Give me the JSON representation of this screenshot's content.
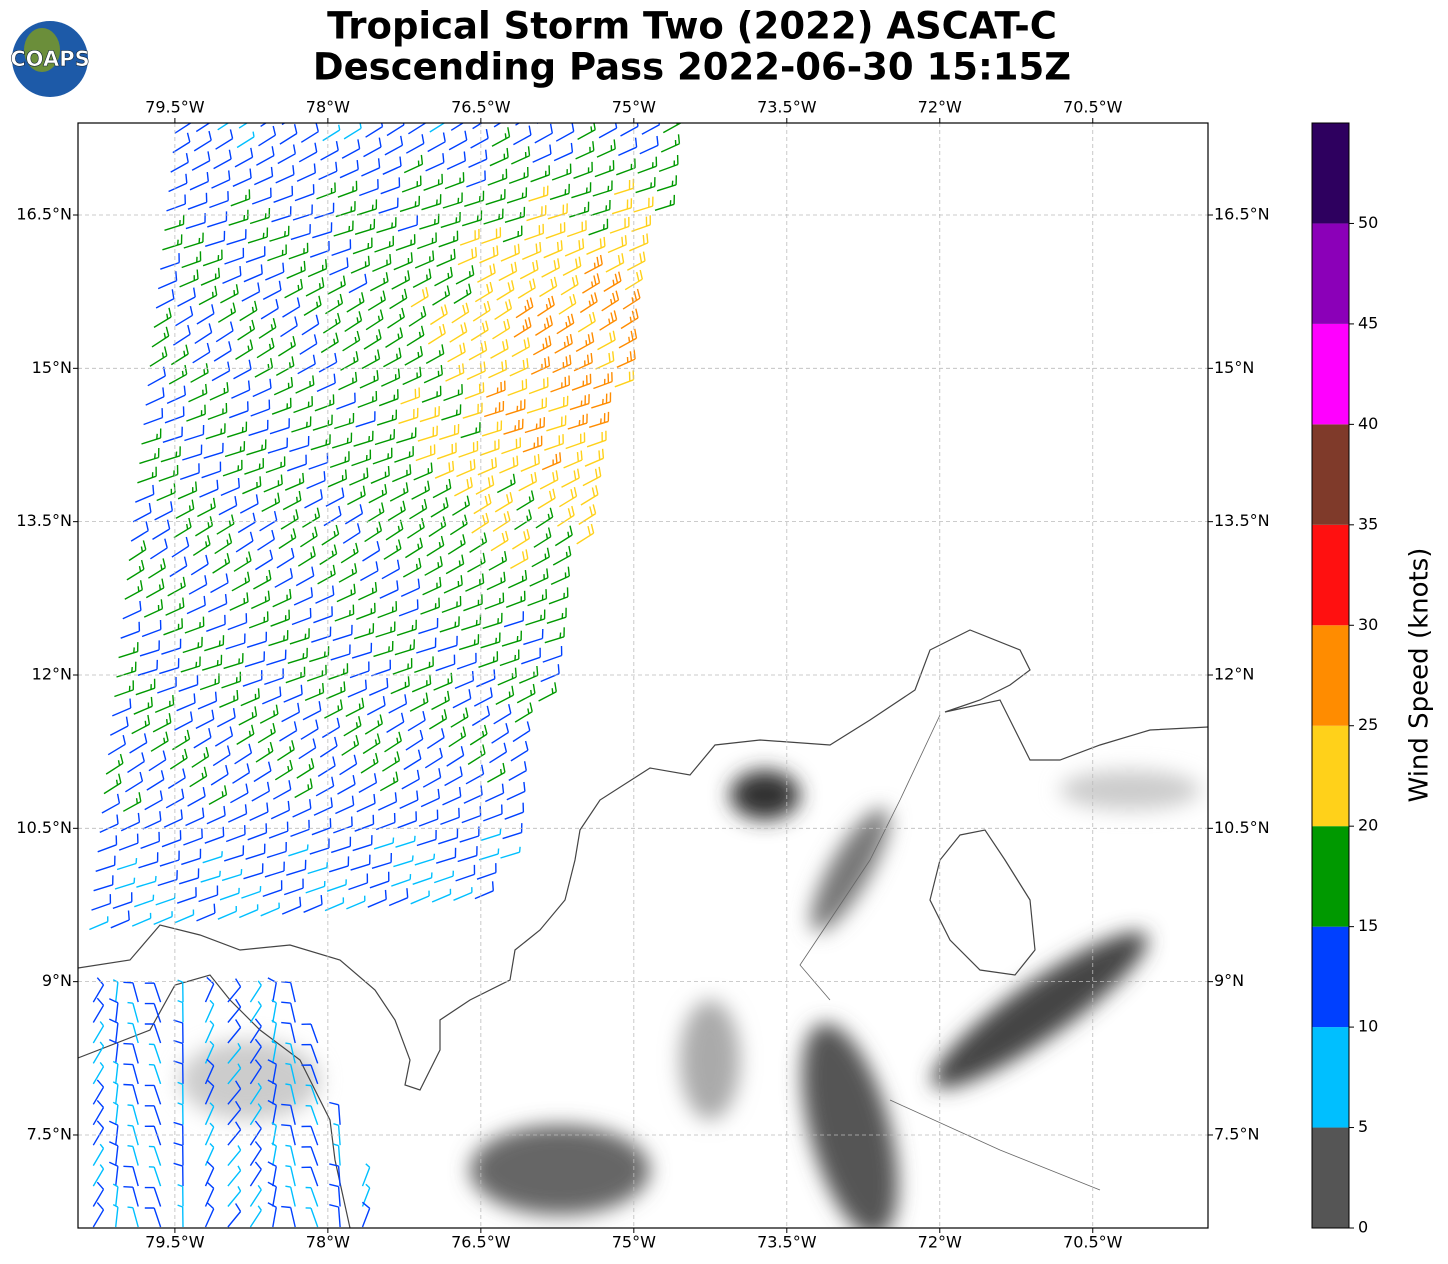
{
  "logo": {
    "text": "COAPS"
  },
  "chart_data": {
    "type": "wind-map",
    "title": [
      "Tropical Storm Two (2022) ASCAT-C",
      "Descending Pass 2022-06-30 15:15Z"
    ],
    "xlim": [
      -80.45,
      -69.37
    ],
    "ylim": [
      6.59,
      17.4
    ],
    "xticks": [
      {
        "value": -79.5,
        "label": "79.5°W"
      },
      {
        "value": -78,
        "label": "78°W"
      },
      {
        "value": -76.5,
        "label": "76.5°W"
      },
      {
        "value": -75,
        "label": "75°W"
      },
      {
        "value": -73.5,
        "label": "73.5°W"
      },
      {
        "value": -72,
        "label": "72°W"
      },
      {
        "value": -70.5,
        "label": "70.5°W"
      }
    ],
    "yticks": [
      {
        "value": 7.5,
        "label": "7.5°N"
      },
      {
        "value": 9,
        "label": "9°N"
      },
      {
        "value": 10.5,
        "label": "10.5°N"
      },
      {
        "value": 12,
        "label": "12°N"
      },
      {
        "value": 13.5,
        "label": "13.5°N"
      },
      {
        "value": 15,
        "label": "15°N"
      },
      {
        "value": 16.5,
        "label": "16.5°N"
      }
    ],
    "grid": true,
    "colorbar": {
      "label": "Wind Speed (knots)",
      "lim": [
        0,
        55
      ],
      "bounds": [
        0,
        5,
        10,
        15,
        20,
        25,
        30,
        35,
        40,
        45,
        50,
        55
      ],
      "colors": [
        "#555555",
        "#00bfff",
        "#0040ff",
        "#009900",
        "#ffd11a",
        "#ff8c00",
        "#ff1010",
        "#7f3a2a",
        "#ff00ff",
        "#8b00b8",
        "#2e005f"
      ],
      "ticks": [
        0,
        5,
        10,
        15,
        20,
        25,
        30,
        35,
        40,
        45,
        50
      ]
    }
  }
}
